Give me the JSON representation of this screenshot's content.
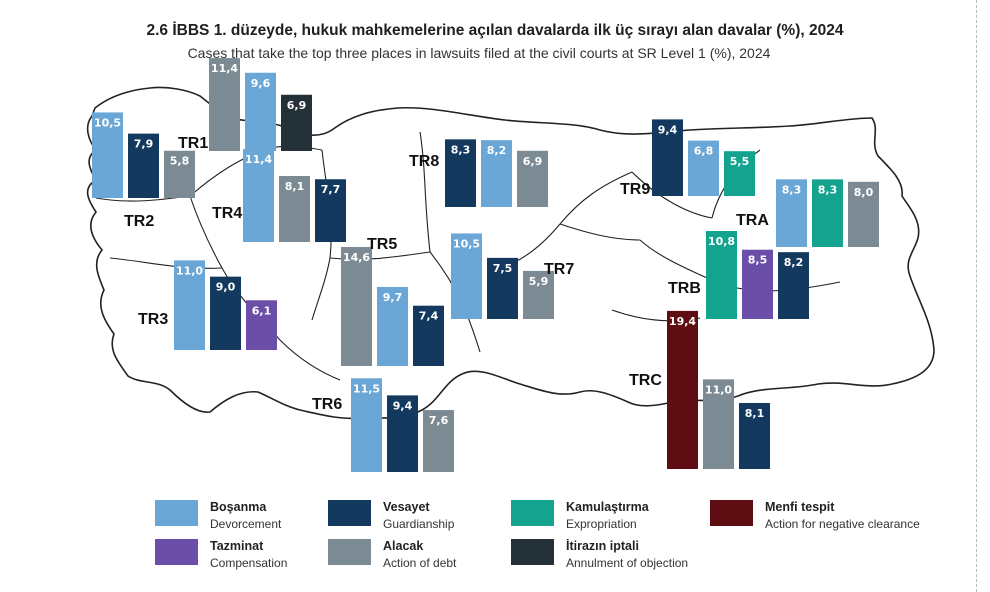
{
  "title": "2.6 İBBS 1. düzeyde, hukuk mahkemelerine açılan davalarda ilk üç sırayı alan davalar (%), 2024",
  "subtitle": "Cases that take the top three places in lawsuits filed at the civil courts at SR Level 1 (%), 2024",
  "colors": {
    "bosanma": "#6aa6d6",
    "vesayet": "#13395f",
    "kamulastirma": "#14a38f",
    "menfi": "#5e0d12",
    "tazminat": "#6a4ea8",
    "alacak": "#7c8b93",
    "itiraz": "#243038",
    "map_fill": "#ffffff",
    "map_stroke": "#222222"
  },
  "legend": [
    {
      "key": "bosanma",
      "tr": "Boşanma",
      "en": "Devorcement",
      "color": "#6aa6d6"
    },
    {
      "key": "vesayet",
      "tr": "Vesayet",
      "en": "Guardianship",
      "color": "#13395f"
    },
    {
      "key": "kamulastirma",
      "tr": "Kamulaştırma",
      "en": "Expropriation",
      "color": "#14a38f"
    },
    {
      "key": "menfi",
      "tr": "Menfi tespit",
      "en": "Action for negative clearance",
      "color": "#5e0d12"
    },
    {
      "key": "tazminat",
      "tr": "Tazminat",
      "en": "Compensation",
      "color": "#6a4ea8"
    },
    {
      "key": "alacak",
      "tr": "Alacak",
      "en": "Action of debt",
      "color": "#7c8b93"
    },
    {
      "key": "itiraz",
      "tr": "İtirazın iptali",
      "en": "Annulment of objection",
      "color": "#243038"
    }
  ],
  "chart_data": {
    "type": "bar",
    "title": "2.6 İBBS 1. düzeyde, hukuk mahkemelerine açılan davalarda ilk üç sırayı alan davalar (%), 2024",
    "subtitle": "Cases that take the top three places in lawsuits filed at the civil courts at SR Level 1 (%), 2024",
    "unit": "%",
    "regions": [
      {
        "region": "TR1",
        "bars": [
          {
            "type": "alacak",
            "value": 11.4,
            "label": "11,4"
          },
          {
            "type": "bosanma",
            "value": 9.6,
            "label": "9,6"
          },
          {
            "type": "itiraz",
            "value": 6.9,
            "label": "6,9"
          }
        ]
      },
      {
        "region": "TR2",
        "bars": [
          {
            "type": "bosanma",
            "value": 10.5,
            "label": "10,5"
          },
          {
            "type": "vesayet",
            "value": 7.9,
            "label": "7,9"
          },
          {
            "type": "alacak",
            "value": 5.8,
            "label": "5,8"
          }
        ]
      },
      {
        "region": "TR3",
        "bars": [
          {
            "type": "bosanma",
            "value": 11.0,
            "label": "11,0"
          },
          {
            "type": "vesayet",
            "value": 9.0,
            "label": "9,0"
          },
          {
            "type": "tazminat",
            "value": 6.1,
            "label": "6,1"
          }
        ]
      },
      {
        "region": "TR4",
        "bars": [
          {
            "type": "bosanma",
            "value": 11.4,
            "label": "11,4"
          },
          {
            "type": "alacak",
            "value": 8.1,
            "label": "8,1"
          },
          {
            "type": "vesayet",
            "value": 7.7,
            "label": "7,7"
          }
        ]
      },
      {
        "region": "TR5",
        "bars": [
          {
            "type": "alacak",
            "value": 14.6,
            "label": "14,6"
          },
          {
            "type": "bosanma",
            "value": 9.7,
            "label": "9,7"
          },
          {
            "type": "vesayet",
            "value": 7.4,
            "label": "7,4"
          }
        ]
      },
      {
        "region": "TR6",
        "bars": [
          {
            "type": "bosanma",
            "value": 11.5,
            "label": "11,5"
          },
          {
            "type": "vesayet",
            "value": 9.4,
            "label": "9,4"
          },
          {
            "type": "alacak",
            "value": 7.6,
            "label": "7,6"
          }
        ]
      },
      {
        "region": "TR7",
        "bars": [
          {
            "type": "bosanma",
            "value": 10.5,
            "label": "10,5"
          },
          {
            "type": "vesayet",
            "value": 7.5,
            "label": "7,5"
          },
          {
            "type": "alacak",
            "value": 5.9,
            "label": "5,9"
          }
        ]
      },
      {
        "region": "TR8",
        "bars": [
          {
            "type": "vesayet",
            "value": 8.3,
            "label": "8,3"
          },
          {
            "type": "bosanma",
            "value": 8.2,
            "label": "8,2"
          },
          {
            "type": "alacak",
            "value": 6.9,
            "label": "6,9"
          }
        ]
      },
      {
        "region": "TR9",
        "bars": [
          {
            "type": "vesayet",
            "value": 9.4,
            "label": "9,4"
          },
          {
            "type": "bosanma",
            "value": 6.8,
            "label": "6,8"
          },
          {
            "type": "kamulastirma",
            "value": 5.5,
            "label": "5,5"
          }
        ]
      },
      {
        "region": "TRA",
        "bars": [
          {
            "type": "bosanma",
            "value": 8.3,
            "label": "8,3"
          },
          {
            "type": "kamulastirma",
            "value": 8.3,
            "label": "8,3"
          },
          {
            "type": "alacak",
            "value": 8.0,
            "label": "8,0"
          }
        ]
      },
      {
        "region": "TRB",
        "bars": [
          {
            "type": "kamulastirma",
            "value": 10.8,
            "label": "10,8"
          },
          {
            "type": "tazminat",
            "value": 8.5,
            "label": "8,5"
          },
          {
            "type": "vesayet",
            "value": 8.2,
            "label": "8,2"
          }
        ]
      },
      {
        "region": "TRC",
        "bars": [
          {
            "type": "menfi",
            "value": 19.4,
            "label": "19,4"
          },
          {
            "type": "alacak",
            "value": 11.0,
            "label": "11,0"
          },
          {
            "type": "vesayet",
            "value": 8.1,
            "label": "8,1"
          }
        ]
      }
    ]
  }
}
